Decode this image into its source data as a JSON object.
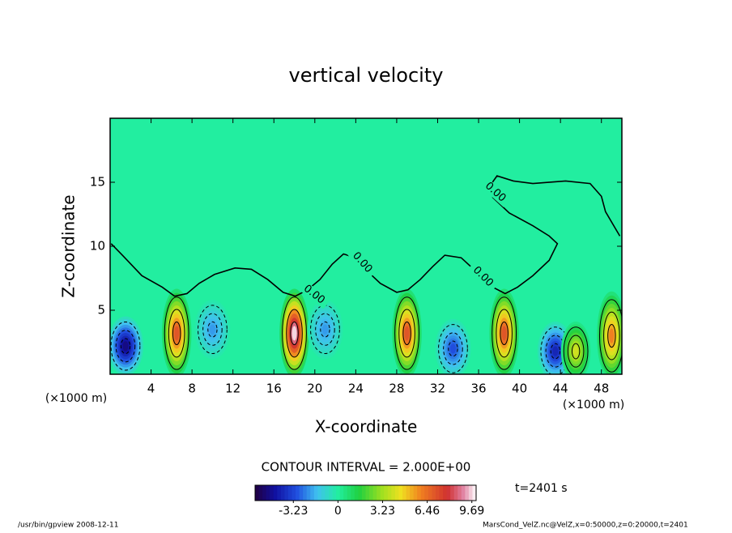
{
  "chart_data": {
    "type": "contour",
    "title": "vertical velocity",
    "xlabel": "X-coordinate",
    "ylabel": "Z-coordinate",
    "x_unit": "(×1000 m)",
    "xlim": [
      0,
      50
    ],
    "ylim": [
      0,
      20
    ],
    "xticks": [
      4,
      8,
      12,
      16,
      20,
      24,
      28,
      32,
      36,
      40,
      44,
      48
    ],
    "yticks": [
      5,
      10,
      15
    ],
    "contour_interval": "CONTOUR INTERVAL = 2.000E+00",
    "time_label": "t=2401 s",
    "colorbar": {
      "lim": [
        -6,
        10
      ],
      "ticks": [
        -3.23,
        0,
        3.23,
        6.46,
        9.69
      ]
    },
    "zero_contour": {
      "label": "0.00",
      "x": [
        0.1,
        1.2,
        3.1,
        5.1,
        6.3,
        7.5,
        8.7,
        10.2,
        12.2,
        13.8,
        15.4,
        16.9,
        18.1,
        19.3,
        20.5,
        21.7,
        22.8,
        24.0,
        25.2,
        26.4,
        28.0,
        29.1,
        30.3,
        31.5,
        32.7,
        34.3,
        35.8,
        37.4,
        38.6,
        39.8,
        41.3,
        42.9,
        43.7,
        42.9,
        41.3,
        39.0,
        37.4,
        37.0,
        37.8,
        39.4,
        41.3,
        44.5,
        46.9,
        48.0,
        48.4,
        49.8
      ],
      "z": [
        10.2,
        9.3,
        7.7,
        6.8,
        6.1,
        6.3,
        7.1,
        7.8,
        8.3,
        8.2,
        7.4,
        6.4,
        6.1,
        6.6,
        7.4,
        8.6,
        9.4,
        9.1,
        8.0,
        7.1,
        6.4,
        6.6,
        7.4,
        8.4,
        9.3,
        9.1,
        8.0,
        6.8,
        6.3,
        6.8,
        7.7,
        8.9,
        10.2,
        10.8,
        11.6,
        12.6,
        13.8,
        14.6,
        15.5,
        15.1,
        14.9,
        15.1,
        14.9,
        13.9,
        12.7,
        10.8
      ]
    },
    "cores": {
      "x": [
        1.5,
        6.5,
        10,
        18,
        21,
        29,
        33.5,
        38.5,
        43.5,
        45.5,
        49
      ],
      "z": [
        2.2,
        3.2,
        3.5,
        3.2,
        3.5,
        3.2,
        2.0,
        3.2,
        1.8,
        1.8,
        3.0
      ],
      "values": [
        -5,
        7,
        -2,
        9.69,
        -2,
        7,
        -3,
        7,
        -4,
        4,
        6
      ]
    },
    "footer_left": "/usr/bin/gpview  2008-12-11",
    "footer_right": "MarsCond_VelZ.nc@VelZ,x=0:50000,z=0:20000,t=2401"
  }
}
